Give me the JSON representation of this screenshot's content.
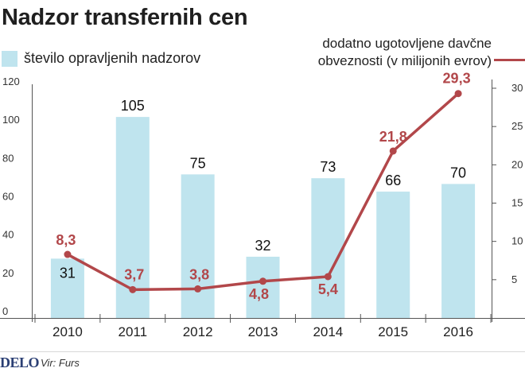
{
  "chart_data": {
    "type": "bar+line",
    "title": "Nadzor transfernih cen",
    "categories": [
      "2010",
      "2011",
      "2012",
      "2013",
      "2014",
      "2015",
      "2016"
    ],
    "series": [
      {
        "name": "število opravljenih nadzorov",
        "kind": "bar",
        "axis": "left",
        "values": [
          31,
          105,
          75,
          32,
          73,
          66,
          70
        ],
        "labels": [
          "31",
          "105",
          "75",
          "32",
          "73",
          "66",
          "70"
        ],
        "color": "#bfe4ee"
      },
      {
        "name": "dodatno ugotovljene davčne obveznosti (v milijonih evrov)",
        "kind": "line",
        "axis": "right",
        "values": [
          8.3,
          3.7,
          3.8,
          4.8,
          5.4,
          21.8,
          29.3
        ],
        "labels": [
          "8,3",
          "3,7",
          "3,8",
          "4,8",
          "5,4",
          "21,8",
          "29,3"
        ],
        "color": "#b2474a"
      }
    ],
    "left_axis": {
      "range": [
        0,
        120
      ],
      "ticks": [
        "0",
        "20",
        "40",
        "60",
        "80",
        "100",
        "120"
      ]
    },
    "right_axis": {
      "range": [
        0,
        30
      ],
      "ticks": [
        "5",
        "10",
        "15",
        "20",
        "25",
        "30"
      ]
    },
    "grid": false,
    "legend_position": "top"
  },
  "legend": {
    "bars_label": "število opravljenih nadzorov",
    "line_label": "dodatno ugotovljene davčne obveznosti (v milijonih evrov)"
  },
  "footer": {
    "brand": "DELO",
    "source": "Vir: Furs"
  }
}
